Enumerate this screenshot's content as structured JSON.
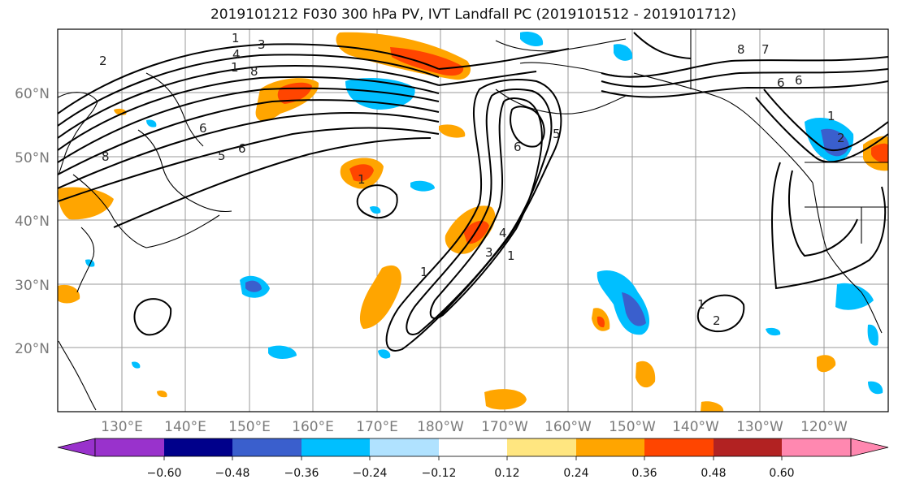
{
  "title": "2019101212 F030 300 hPa PV, IVT Landfall PC (2019101512 - 2019101712)",
  "map": {
    "lat_labels": [
      "60°N",
      "50°N",
      "40°N",
      "30°N",
      "20°N"
    ],
    "lon_labels": [
      "130°E",
      "140°E",
      "150°E",
      "160°E",
      "170°E",
      "180°W",
      "170°W",
      "160°W",
      "150°W",
      "140°W",
      "130°W",
      "120°W"
    ],
    "contour_labels": [
      "1",
      "4",
      "3",
      "1",
      "8",
      "2",
      "6",
      "6",
      "5",
      "8",
      "1",
      "6",
      "5",
      "4",
      "3",
      "1",
      "1",
      "8",
      "7",
      "6",
      "6",
      "1",
      "2",
      "1",
      "2"
    ]
  },
  "colorbar": {
    "tick_labels": [
      "−0.60",
      "−0.48",
      "−0.36",
      "−0.24",
      "−0.12",
      "0.12",
      "0.24",
      "0.36",
      "0.48",
      "0.60"
    ],
    "colors": [
      "#9932cc",
      "#00008b",
      "#3a5fcd",
      "#00bfff",
      "#b0e2ff",
      "#ffffff",
      "#ffe680",
      "#ffa500",
      "#ff4500",
      "#b22222",
      "#ff88b0"
    ]
  }
}
